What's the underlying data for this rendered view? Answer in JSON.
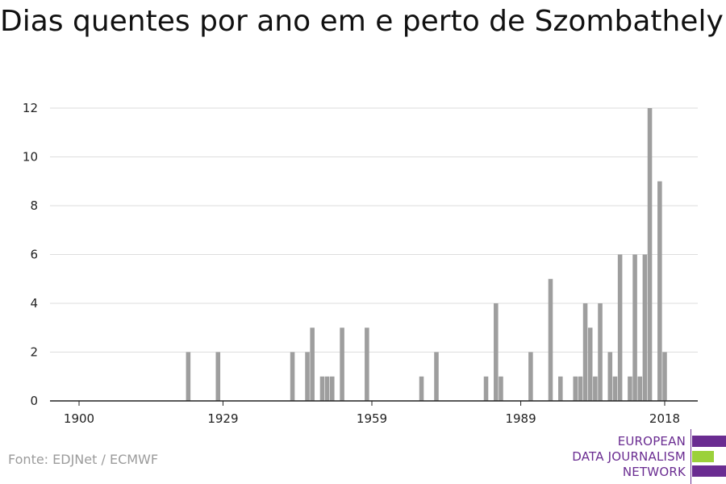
{
  "title": "Dias quentes por ano em e perto de Szombathely",
  "source": "Fonte: EDJNet / ECMWF",
  "logo": {
    "line1": "EUROPEAN",
    "line2": "DATA JOURNALISM",
    "line3": "NETWORK",
    "text_color": "#6a2c91",
    "purple": "#6a2c91",
    "green": "#9bd13b"
  },
  "colors": {
    "bar": "#9e9e9e",
    "grid": "#dddddd",
    "axis": "#222222"
  },
  "chart_data": {
    "type": "bar",
    "title": "Dias quentes por ano em e perto de Szombathely",
    "xlabel": "",
    "ylabel": "",
    "xlim": [
      1900,
      2018
    ],
    "ylim": [
      0,
      12
    ],
    "x_ticks": [
      "1900",
      "1929",
      "1959",
      "1989",
      "2018"
    ],
    "y_ticks": [
      "0",
      "2",
      "4",
      "6",
      "8",
      "10",
      "12"
    ],
    "grid": true,
    "x": [
      1922,
      1928,
      1943,
      1946,
      1947,
      1949,
      1950,
      1951,
      1953,
      1958,
      1969,
      1972,
      1982,
      1984,
      1985,
      1991,
      1995,
      1997,
      2000,
      2001,
      2002,
      2003,
      2004,
      2005,
      2006,
      2007,
      2008,
      2009,
      2010,
      2011,
      2012,
      2013,
      2014,
      2015,
      2016,
      2017,
      2018
    ],
    "values": [
      2,
      2,
      2,
      2,
      3,
      1,
      1,
      1,
      3,
      3,
      1,
      2,
      1,
      4,
      1,
      2,
      5,
      1,
      1,
      1,
      4,
      3,
      1,
      4,
      0,
      2,
      1,
      6,
      0,
      1,
      6,
      1,
      6,
      12,
      0,
      9,
      2
    ]
  }
}
